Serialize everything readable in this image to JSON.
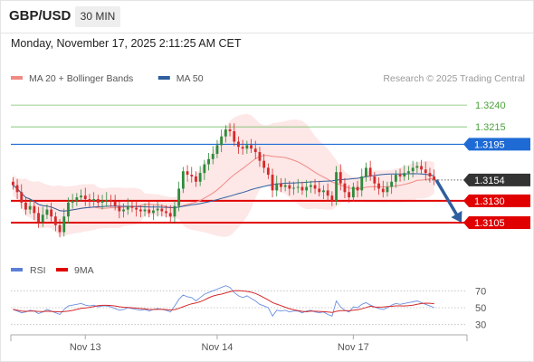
{
  "header": {
    "symbol": "GBP/USD",
    "timeframe": "30 MIN",
    "timestamp": "Monday, November 17, 2025 2:11:25 AM CET"
  },
  "legend": {
    "items": [
      {
        "label": "MA 20 + Bollinger Bands",
        "color": "#f08a84"
      },
      {
        "label": "MA 50",
        "color": "#2e5f9e"
      }
    ],
    "credit": "Research © 2025 Trading Central"
  },
  "colors": {
    "up": "#2e8b3c",
    "down": "#d42a2a",
    "resistance": "#1f6bd6",
    "support": "#e00000",
    "target": "#78c06a",
    "current": "#333333",
    "arrow": "#2e5f9e",
    "bollinger": "#fde3e3",
    "ma20": "#f08a84",
    "ma50": "#2e5f9e"
  },
  "chart_data": [
    {
      "type": "candlestick",
      "title": "GBP/USD",
      "ylim": [
        1.308,
        1.3262
      ],
      "x_tick_labels": [
        "Nov 13",
        "Nov 14",
        "Nov 17"
      ],
      "levels": [
        {
          "value": 1.324,
          "label": "1.3240",
          "kind": "target"
        },
        {
          "value": 1.3215,
          "label": "1.3215",
          "kind": "target"
        },
        {
          "value": 1.3195,
          "label": "1.3195",
          "kind": "resistance"
        },
        {
          "value": 1.3154,
          "label": "1.3154",
          "kind": "current"
        },
        {
          "value": 1.313,
          "label": "1.3130",
          "kind": "support"
        },
        {
          "value": 1.3105,
          "label": "1.3105",
          "kind": "support"
        }
      ],
      "forecast_arrow": {
        "from": 1.3154,
        "to": 1.3105,
        "direction": "down"
      },
      "series": [
        {
          "name": "MA 20 + Bollinger Bands"
        },
        {
          "name": "MA 50"
        }
      ],
      "closes": [
        1.3148,
        1.314,
        1.3128,
        1.312,
        1.3124,
        1.3116,
        1.3106,
        1.3114,
        1.312,
        1.3112,
        1.3102,
        1.3094,
        1.3112,
        1.3128,
        1.313,
        1.3134,
        1.3136,
        1.3132,
        1.313,
        1.3132,
        1.3128,
        1.313,
        1.3131,
        1.3129,
        1.3124,
        1.3118,
        1.312,
        1.3124,
        1.3122,
        1.312,
        1.3118,
        1.312,
        1.3116,
        1.3119,
        1.3121,
        1.3118,
        1.3116,
        1.3112,
        1.3124,
        1.3144,
        1.3164,
        1.316,
        1.3158,
        1.3152,
        1.3162,
        1.3172,
        1.3178,
        1.3184,
        1.3194,
        1.3204,
        1.3212,
        1.321,
        1.3198,
        1.3192,
        1.319,
        1.3194,
        1.319,
        1.3186,
        1.3176,
        1.3168,
        1.316,
        1.3142,
        1.315,
        1.3146,
        1.3148,
        1.3144,
        1.3145,
        1.3146,
        1.3142,
        1.3146,
        1.3148,
        1.3144,
        1.314,
        1.3142,
        1.3136,
        1.313,
        1.3163,
        1.315,
        1.314,
        1.3134,
        1.3146,
        1.3142,
        1.3158,
        1.3168,
        1.3158,
        1.315,
        1.3144,
        1.314,
        1.3146,
        1.3152,
        1.316,
        1.3158,
        1.3162,
        1.3164,
        1.3168,
        1.317,
        1.3166,
        1.3162,
        1.3158,
        1.3154
      ],
      "rsi": {
        "name": "RSI",
        "ma_name": "9MA",
        "levels": [
          70,
          50,
          30
        ],
        "ylim": [
          20,
          80
        ],
        "values": [
          48,
          46,
          44,
          45,
          47,
          46,
          43,
          45,
          48,
          46,
          44,
          42,
          48,
          52,
          53,
          54,
          55,
          53,
          52,
          53,
          51,
          52,
          52,
          51,
          49,
          47,
          48,
          50,
          49,
          48,
          47,
          48,
          46,
          48,
          49,
          48,
          47,
          45,
          52,
          60,
          65,
          63,
          62,
          58,
          62,
          66,
          68,
          70,
          72,
          74,
          76,
          74,
          68,
          64,
          62,
          64,
          61,
          58,
          54,
          52,
          50,
          40,
          47,
          46,
          47,
          45,
          46,
          46,
          44,
          46,
          47,
          45,
          44,
          45,
          42,
          40,
          58,
          51,
          47,
          45,
          51,
          50,
          54,
          56,
          53,
          51,
          49,
          48,
          50,
          53,
          55,
          54,
          55,
          56,
          57,
          58,
          56,
          54,
          52,
          50
        ]
      }
    }
  ]
}
